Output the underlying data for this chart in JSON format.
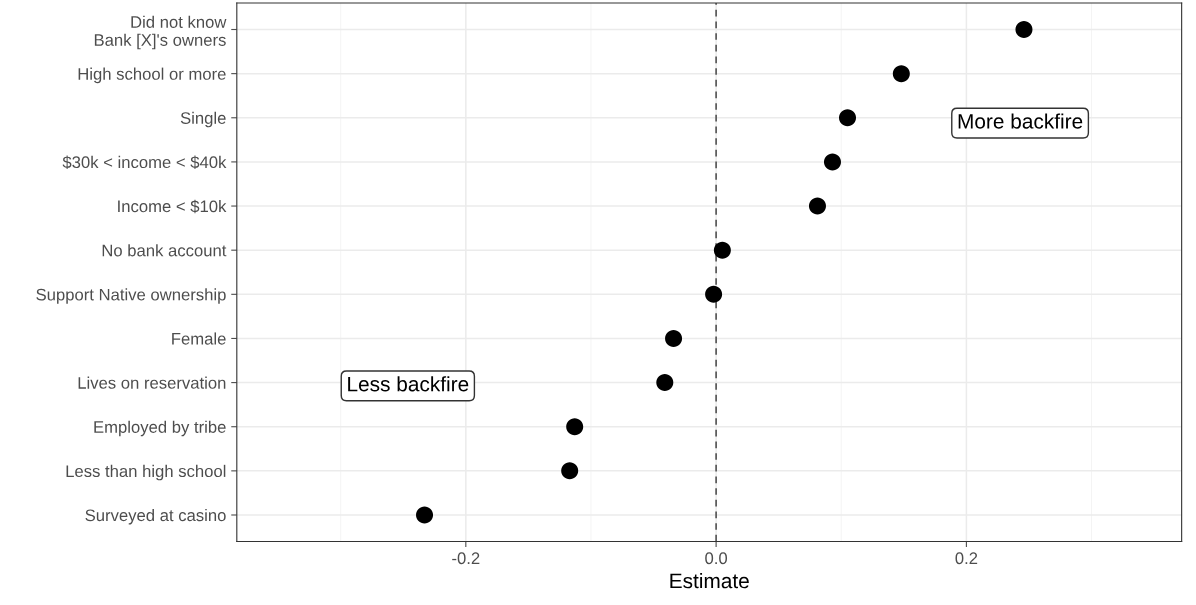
{
  "chart_data": {
    "type": "scatter",
    "orientation": "horizontal",
    "xlabel": "Estimate",
    "categories": [
      "Did not know\nBank [X]'s owners",
      "High school or more",
      "Single",
      "$30k < income < $40k",
      "Income < $10k",
      "No bank account",
      "Support Native ownership",
      "Female",
      "Lives on reservation",
      "Employed by tribe",
      "Less than high school",
      "Surveyed at casino"
    ],
    "series": [
      {
        "color": "#000000",
        "values": [
          0.246,
          0.148,
          0.105,
          0.093,
          0.081,
          0.005,
          -0.002,
          -0.034,
          -0.041,
          -0.113,
          -0.117,
          -0.233
        ]
      }
    ],
    "xlim": [
      -0.383,
      0.372
    ],
    "xticks": [
      -0.2,
      {
        "value": 0.0,
        "label": "0.0"
      },
      0.2
    ],
    "grid": true,
    "marker": "circle",
    "ref_lines": [
      {
        "axis": "x",
        "value": 0,
        "color": "#555555",
        "line_style": "dashed"
      }
    ],
    "annotations": [
      "More backfire",
      "Less backfire"
    ]
  }
}
